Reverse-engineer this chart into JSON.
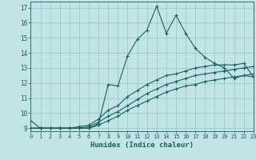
{
  "xlabel": "Humidex (Indice chaleur)",
  "xlim": [
    0,
    23
  ],
  "ylim": [
    8.8,
    17.4
  ],
  "xticks": [
    0,
    1,
    2,
    3,
    4,
    5,
    6,
    7,
    8,
    9,
    10,
    11,
    12,
    13,
    14,
    15,
    16,
    17,
    18,
    19,
    20,
    21,
    22,
    23
  ],
  "yticks": [
    9,
    10,
    11,
    12,
    13,
    14,
    15,
    16,
    17
  ],
  "bg_color": "#c2e4e4",
  "grid_color": "#96cccc",
  "line_color": "#1a6060",
  "line1_x": [
    0,
    1,
    2,
    3,
    4,
    5,
    6,
    7,
    8,
    9,
    10,
    11,
    12,
    13,
    14,
    15,
    16,
    17,
    18,
    19,
    20,
    21,
    22,
    23
  ],
  "line1_y": [
    9.5,
    9.0,
    9.0,
    9.0,
    9.0,
    9.0,
    9.0,
    9.3,
    11.9,
    11.8,
    13.8,
    14.9,
    15.5,
    17.1,
    15.3,
    16.5,
    15.3,
    14.3,
    13.7,
    13.3,
    13.0,
    12.3,
    12.5,
    12.4
  ],
  "line2_x": [
    0,
    1,
    2,
    3,
    4,
    5,
    6,
    7,
    8,
    9,
    10,
    11,
    12,
    13,
    14,
    15,
    16,
    17,
    18,
    19,
    20,
    21,
    22,
    23
  ],
  "line2_y": [
    9.0,
    9.0,
    9.0,
    9.0,
    9.0,
    9.1,
    9.2,
    9.6,
    10.2,
    10.5,
    11.1,
    11.5,
    11.9,
    12.2,
    12.5,
    12.6,
    12.8,
    13.0,
    13.1,
    13.2,
    13.2,
    13.2,
    13.3,
    12.4
  ],
  "line3_x": [
    0,
    1,
    2,
    3,
    4,
    5,
    6,
    7,
    8,
    9,
    10,
    11,
    12,
    13,
    14,
    15,
    16,
    17,
    18,
    19,
    20,
    21,
    22,
    23
  ],
  "line3_y": [
    9.0,
    9.0,
    9.0,
    9.0,
    9.0,
    9.0,
    9.1,
    9.4,
    9.8,
    10.1,
    10.5,
    10.9,
    11.3,
    11.6,
    11.9,
    12.1,
    12.3,
    12.5,
    12.6,
    12.7,
    12.8,
    12.9,
    13.0,
    13.1
  ],
  "line4_x": [
    0,
    1,
    2,
    3,
    4,
    5,
    6,
    7,
    8,
    9,
    10,
    11,
    12,
    13,
    14,
    15,
    16,
    17,
    18,
    19,
    20,
    21,
    22,
    23
  ],
  "line4_y": [
    9.0,
    9.0,
    9.0,
    9.0,
    9.0,
    9.0,
    9.0,
    9.2,
    9.5,
    9.8,
    10.2,
    10.5,
    10.8,
    11.1,
    11.4,
    11.6,
    11.8,
    11.9,
    12.1,
    12.2,
    12.3,
    12.4,
    12.5,
    12.6
  ]
}
